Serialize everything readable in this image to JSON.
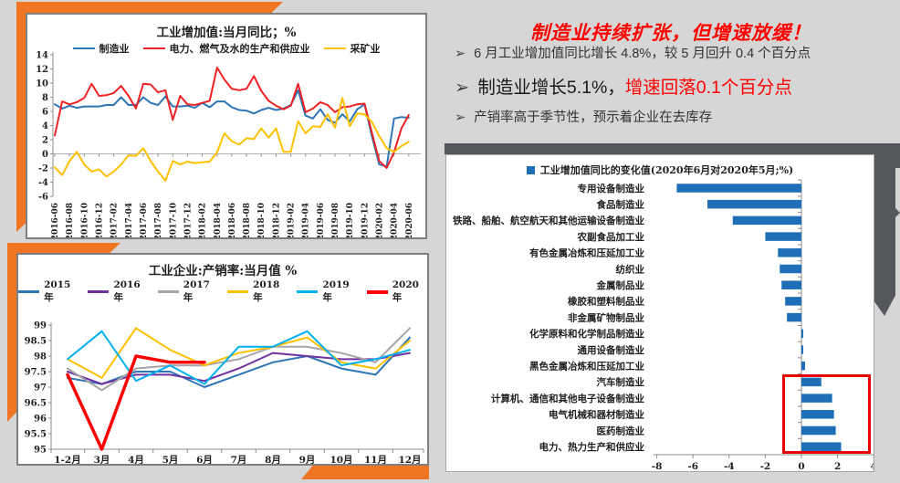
{
  "headline": {
    "title": "制造业持续扩张，但增速放缓！"
  },
  "bullets": [
    {
      "marker": "➢",
      "segments": [
        {
          "text": "6 月工业增加值同比增长 4.8%，较 5 月回升 0.4 个百分点"
        }
      ]
    },
    {
      "marker": "➢",
      "segments": [
        {
          "text": "制造业增长5.1%，"
        },
        {
          "text": "增速回落0.1个百分点"
        }
      ]
    },
    {
      "marker": "➢",
      "segments": [
        {
          "text": "产销率高于季节性，预示着企业在去库存"
        }
      ]
    }
  ],
  "colors": {
    "accent_orange": "#ef7522",
    "accent_gray": "#54585c",
    "bar_blue": "#1f6fb8",
    "highlight_red": "#e80000",
    "headline_red": "#fe0000"
  },
  "chart_data": [
    {
      "type": "line",
      "title": "工业增加值:当月同比；%",
      "ylim": [
        -6,
        14
      ],
      "ytick_step": 2,
      "grid": "zero-line-only",
      "legend_position": "top",
      "x": [
        "2016-06",
        "2016-07",
        "2016-08",
        "2016-09",
        "2016-10",
        "2016-11",
        "2016-12",
        "2017-01",
        "2017-02",
        "2017-03",
        "2017-04",
        "2017-05",
        "2017-06",
        "2017-07",
        "2017-08",
        "2017-09",
        "2017-10",
        "2017-11",
        "2017-12",
        "2018-01",
        "2018-02",
        "2018-03",
        "2018-04",
        "2018-05",
        "2018-06",
        "2018-07",
        "2018-08",
        "2018-09",
        "2018-10",
        "2018-11",
        "2018-12",
        "2019-01",
        "2019-02",
        "2019-03",
        "2019-04",
        "2019-05",
        "2019-06",
        "2019-07",
        "2019-08",
        "2019-09",
        "2019-10",
        "2019-11",
        "2019-12",
        "2020-01",
        "2020-02",
        "2020-03",
        "2020-04",
        "2020-05",
        "2020-06"
      ],
      "x_tick_every": 2,
      "series": [
        {
          "name": "制造业",
          "color": "#2e75b6",
          "width": 2,
          "values": [
            7.0,
            6.4,
            6.8,
            6.5,
            6.7,
            6.7,
            6.7,
            6.9,
            6.9,
            8.0,
            6.9,
            6.9,
            8.0,
            7.2,
            6.9,
            8.1,
            6.7,
            6.7,
            6.8,
            6.5,
            7.2,
            6.6,
            7.4,
            7.4,
            6.6,
            6.2,
            6.1,
            5.7,
            6.2,
            6.5,
            6.2,
            6.4,
            6.9,
            9.0,
            5.4,
            5.0,
            6.3,
            4.8,
            4.4,
            5.6,
            4.6,
            6.3,
            7.0,
            2.5,
            -1.5,
            -1.8,
            5.0,
            5.2,
            5.1
          ]
        },
        {
          "name": "电力、燃气及水的生产和供应业",
          "color": "#ee2224",
          "width": 2,
          "values": [
            2.6,
            7.4,
            7.0,
            7.3,
            7.9,
            9.9,
            8.2,
            8.3,
            8.6,
            9.6,
            8.2,
            6.4,
            9.9,
            9.8,
            8.7,
            9.0,
            4.8,
            8.2,
            7.0,
            6.9,
            7.2,
            7.5,
            12.2,
            10.5,
            9.2,
            9.0,
            9.2,
            11.0,
            8.9,
            7.5,
            6.8,
            6.3,
            6.8,
            9.9,
            5.9,
            6.4,
            7.3,
            6.9,
            5.9,
            6.6,
            6.7,
            7.0,
            7.1,
            3.0,
            -1.0,
            -2.0,
            0.2,
            3.6,
            5.5
          ]
        },
        {
          "name": "采矿业",
          "color": "#ffc000",
          "width": 2,
          "values": [
            -1.9,
            -3.0,
            -1.0,
            0.3,
            -1.5,
            -2.5,
            -2.2,
            -3.2,
            -2.5,
            -1.5,
            -0.2,
            -0.3,
            0.8,
            -1.0,
            -2.5,
            -3.8,
            -1.0,
            -1.5,
            -1.1,
            -1.3,
            -1.2,
            -1.1,
            0.2,
            2.9,
            1.8,
            1.3,
            2.2,
            2.1,
            3.6,
            2.3,
            3.6,
            0.3,
            0.3,
            4.6,
            2.9,
            3.9,
            3.8,
            5.6,
            3.7,
            7.9,
            3.9,
            5.7,
            5.6,
            4.5,
            2.5,
            0.8,
            0.3,
            1.1,
            1.7
          ]
        }
      ]
    },
    {
      "type": "line",
      "title": "工业企业:产销率:当月值 %",
      "ylim": [
        95,
        99
      ],
      "ytick_step": 0.5,
      "grid": "off",
      "legend_position": "top",
      "x": [
        "1-2月",
        "3月",
        "4月",
        "5月",
        "6月",
        "7月",
        "8月",
        "9月",
        "10月",
        "11月",
        "12月"
      ],
      "x_tick_every": 1,
      "series": [
        {
          "name": "2015年",
          "color": "#2e75b6",
          "width": 2,
          "values": [
            97.3,
            97.1,
            97.5,
            97.5,
            97.0,
            97.4,
            97.8,
            98.0,
            97.6,
            97.4,
            98.6
          ]
        },
        {
          "name": "2016年",
          "color": "#7030a0",
          "width": 2,
          "values": [
            97.5,
            97.1,
            97.4,
            97.4,
            97.2,
            97.6,
            98.1,
            98.0,
            97.9,
            97.9,
            98.1
          ]
        },
        {
          "name": "2017年",
          "color": "#a6a6a6",
          "width": 2,
          "values": [
            97.6,
            96.9,
            97.6,
            97.7,
            97.7,
            97.9,
            98.3,
            98.3,
            98.1,
            97.8,
            98.9
          ]
        },
        {
          "name": "2018年",
          "color": "#ffc000",
          "width": 2,
          "values": [
            97.9,
            97.3,
            98.9,
            98.2,
            97.7,
            98.1,
            98.3,
            98.6,
            97.8,
            97.6,
            98.5
          ]
        },
        {
          "name": "2019年",
          "color": "#00b0f0",
          "width": 2,
          "values": [
            97.9,
            98.8,
            97.2,
            97.7,
            97.1,
            98.3,
            98.3,
            98.8,
            97.7,
            97.9,
            98.2
          ]
        },
        {
          "name": "2020年",
          "color": "#ff0000",
          "width": 3.5,
          "values": [
            97.4,
            95.0,
            98.0,
            97.8,
            97.8,
            null,
            null,
            null,
            null,
            null,
            null
          ]
        }
      ]
    },
    {
      "type": "bar",
      "orientation": "horizontal",
      "legend": "工业增加值同比的变化值(2020年6月对2020年5月;%)",
      "bar_color": "#1f6fb8",
      "xlim": [
        -8,
        4
      ],
      "xtick_step": 2,
      "categories": [
        "专用设备制造业",
        "食品制造业",
        "铁路、船舶、航空航天和其他运输设备制造业",
        "农副食品加工业",
        "有色金属冶炼和压延加工业",
        "纺织业",
        "金属制品业",
        "橡胶和塑料制品业",
        "非金属矿物制品业",
        "化学原料和化学制品制造业",
        "通用设备制造业",
        "黑色金属冶炼和压延加工业",
        "汽车制造业",
        "计算机、通信和其他电子设备制造业",
        "电气机械和器材制造业",
        "医药制造业",
        "电力、热力生产和供应业"
      ],
      "values": [
        -6.9,
        -5.2,
        -3.8,
        -2.0,
        -1.3,
        -1.2,
        -1.1,
        -0.9,
        -0.8,
        0.1,
        0.1,
        0.2,
        1.1,
        1.7,
        1.8,
        1.9,
        2.2
      ],
      "highlight": "red box around the positive bars at bottom (汽车制造业 … 电力、热力生产和供应业)"
    }
  ]
}
